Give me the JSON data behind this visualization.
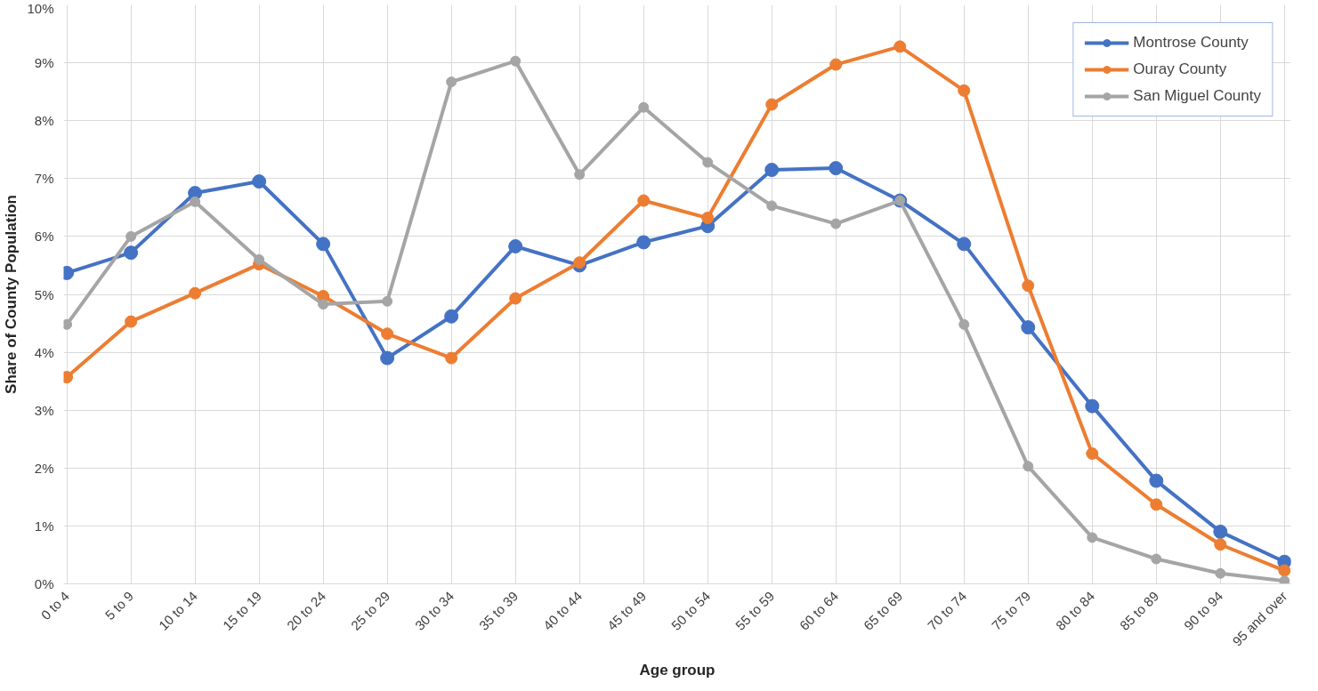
{
  "chart_data": {
    "type": "line",
    "xlabel": "Age group",
    "ylabel": "Share of County Population",
    "categories": [
      "0 to 4",
      "5 to 9",
      "10 to 14",
      "15 to 19",
      "20 to 24",
      "25 to 29",
      "30 to 34",
      "35 to 39",
      "40 to 44",
      "45 to 49",
      "50 to 54",
      "55 to 59",
      "60 to 64",
      "65 to 69",
      "70 to 74",
      "75 to 79",
      "80 to 84",
      "85 to 89",
      "90 to 94",
      "95 and over"
    ],
    "series": [
      {
        "name": "Montrose County",
        "color": "#4472c4",
        "values": [
          5.37,
          5.72,
          6.75,
          6.95,
          5.87,
          3.9,
          4.62,
          5.83,
          5.5,
          5.9,
          6.18,
          7.15,
          7.18,
          6.62,
          5.87,
          4.43,
          3.07,
          1.78,
          0.9,
          0.38
        ]
      },
      {
        "name": "Ouray County",
        "color": "#ed7d31",
        "values": [
          3.57,
          4.53,
          5.02,
          5.52,
          4.97,
          4.32,
          3.9,
          4.93,
          5.55,
          6.62,
          6.32,
          8.28,
          8.97,
          9.28,
          8.52,
          5.15,
          2.25,
          1.37,
          0.68,
          0.23
        ]
      },
      {
        "name": "San Miguel County",
        "color": "#a5a5a5",
        "values": [
          4.48,
          6.0,
          6.6,
          5.6,
          4.83,
          4.88,
          8.67,
          9.03,
          7.07,
          8.23,
          7.28,
          6.53,
          6.22,
          6.62,
          4.48,
          2.03,
          0.8,
          0.43,
          0.18,
          0.05
        ]
      }
    ],
    "ylim": [
      0,
      10
    ],
    "yticks": [
      {
        "value": 0,
        "label": "0%"
      },
      {
        "value": 1,
        "label": "1%"
      },
      {
        "value": 2,
        "label": "2%"
      },
      {
        "value": 3,
        "label": "3%"
      },
      {
        "value": 4,
        "label": "4%"
      },
      {
        "value": 5,
        "label": "5%"
      },
      {
        "value": 6,
        "label": "6%"
      },
      {
        "value": 7,
        "label": "7%"
      },
      {
        "value": 8,
        "label": "8%"
      },
      {
        "value": 9,
        "label": "9%"
      },
      {
        "value": 10,
        "label": "10%"
      }
    ],
    "grid": true,
    "legend": "top right",
    "marker": "circle",
    "line_style": "solid"
  }
}
